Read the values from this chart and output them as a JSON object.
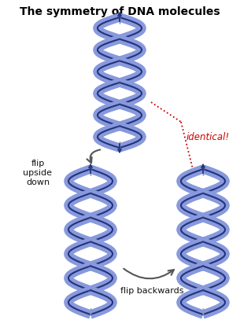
{
  "title": "The symmetry of DNA molecules",
  "title_fontsize": 10,
  "title_weight": "bold",
  "bg_color": "#ffffff",
  "dna_color_light": "#8899dd",
  "dna_color_dark": "#223377",
  "arrow_color": "#555555",
  "identical_color": "#cc0000",
  "label_flip_upside": "flip\nupside\ndown",
  "label_flip_backwards": "flip backwards",
  "label_identical": "identical!",
  "figsize": [
    3.05,
    4.07
  ],
  "dpi": 100
}
